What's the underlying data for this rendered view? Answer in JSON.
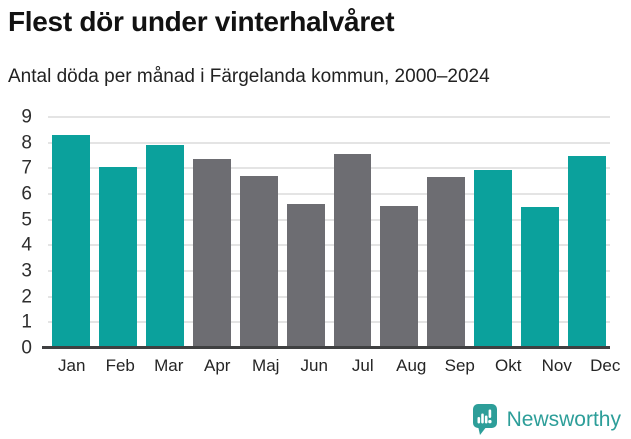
{
  "header": {
    "title": "Flest dör under vinterhalvåret",
    "subtitle": "Antal döda per månad i Färgelanda kommun, 2000–2024"
  },
  "chart_data": {
    "type": "bar",
    "categories": [
      "Jan",
      "Feb",
      "Mar",
      "Apr",
      "Maj",
      "Jun",
      "Jul",
      "Aug",
      "Sep",
      "Okt",
      "Nov",
      "Dec"
    ],
    "values": [
      8.3,
      7.05,
      7.9,
      7.35,
      6.7,
      5.6,
      7.55,
      5.55,
      6.65,
      6.95,
      5.5,
      7.5
    ],
    "bar_color_keys": [
      "highlight",
      "highlight",
      "highlight",
      "muted",
      "muted",
      "muted",
      "muted",
      "muted",
      "muted",
      "highlight",
      "highlight",
      "highlight"
    ],
    "title": "Flest dör under vinterhalvåret",
    "subtitle": "Antal döda per månad i Färgelanda kommun, 2000–2024",
    "xlabel": "",
    "ylabel": "",
    "ylim": [
      0,
      9
    ],
    "yticks": [
      0,
      1,
      2,
      3,
      4,
      5,
      6,
      7,
      8,
      9
    ],
    "grid": true,
    "legend": "none",
    "colors": {
      "highlight": "#0ba19c",
      "muted": "#6d6d72",
      "gridline": "#e4e4e4",
      "axis_line": "#3f4041"
    }
  },
  "footer": {
    "brand": "Newsworthy",
    "logo_icon": "newsworthy-bar-chart-bubble-icon",
    "brand_color": "#2d9e99"
  }
}
